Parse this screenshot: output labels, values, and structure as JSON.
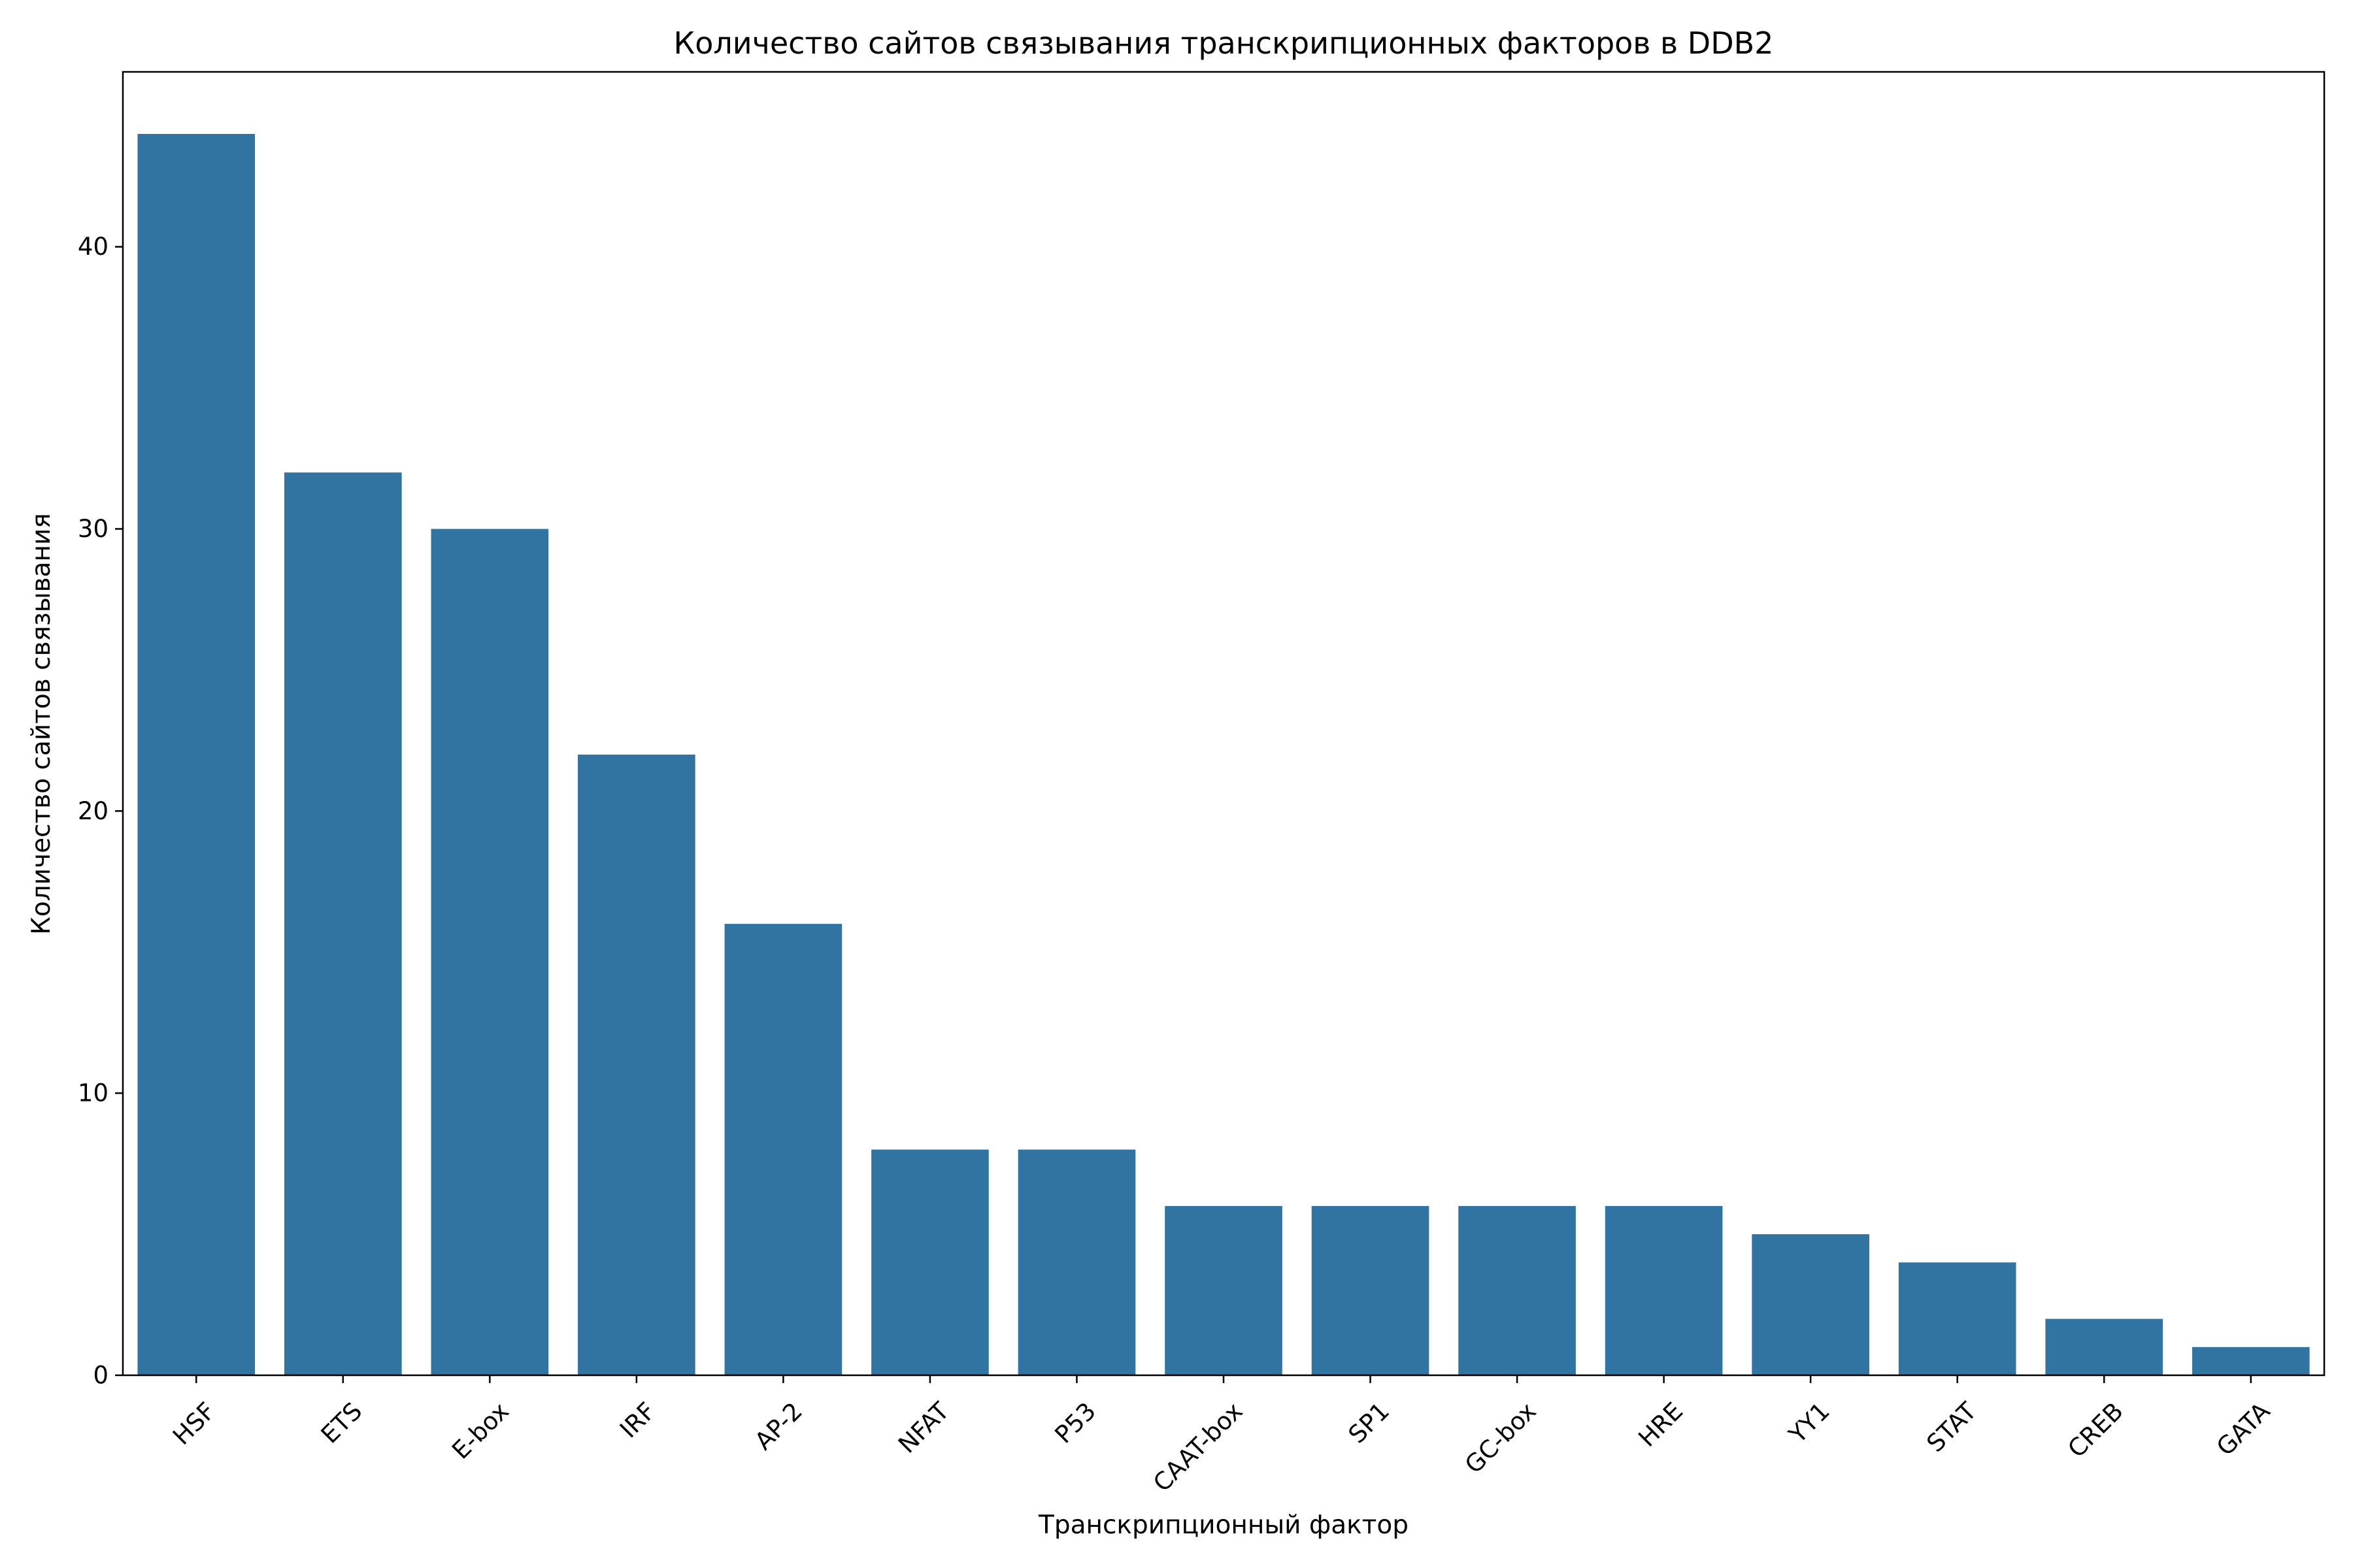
{
  "chart_data": {
    "type": "bar",
    "title": "Количество сайтов связывания транскрипционных факторов в DDB2",
    "xlabel": "Транскрипционный фактор",
    "ylabel": "Количество сайтов связывания",
    "categories": [
      "HSF",
      "ETS",
      "E-box",
      "IRF",
      "AP-2",
      "NFAT",
      "P53",
      "CAAT-box",
      "SP1",
      "GC-box",
      "HRE",
      "YY1",
      "STAT",
      "CREB",
      "GATA"
    ],
    "values": [
      44,
      32,
      30,
      22,
      16,
      8,
      8,
      6,
      6,
      6,
      6,
      5,
      4,
      2,
      1
    ],
    "yticks": [
      0,
      10,
      20,
      30,
      40
    ],
    "ylim": [
      0,
      46.2
    ],
    "grid": false,
    "bar_color": "#3274a1",
    "axis_color": "#000000",
    "background": "#ffffff"
  }
}
